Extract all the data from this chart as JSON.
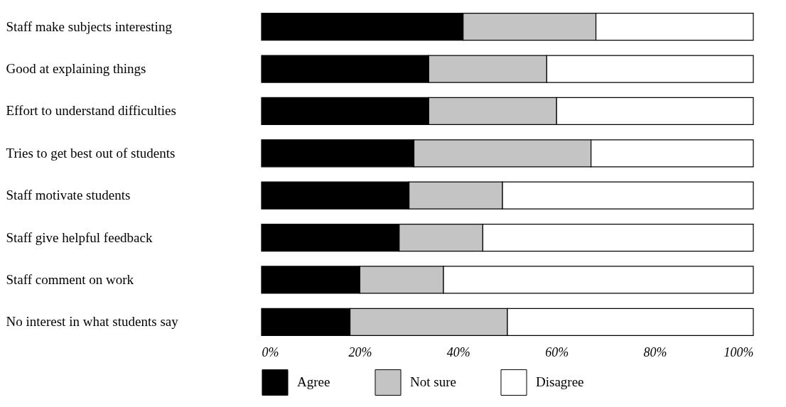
{
  "chart_data": {
    "type": "bar",
    "orientation": "horizontal",
    "stacked": true,
    "categories": [
      "Staff make subjects interesting",
      "Good at explaining things",
      "Effort to understand difficulties",
      "Tries to get best out of students",
      "Staff motivate students",
      "Staff give helpful feedback",
      "Staff comment on work",
      "No interest in what students say"
    ],
    "series": [
      {
        "name": "Agree",
        "color": "#000000",
        "values": [
          41,
          34,
          34,
          31,
          30,
          28,
          20,
          18
        ]
      },
      {
        "name": "Not sure",
        "color": "#c4c4c4",
        "values": [
          27,
          24,
          26,
          36,
          19,
          17,
          17,
          32
        ]
      },
      {
        "name": "Disagree",
        "color": "#ffffff",
        "values": [
          32,
          42,
          40,
          33,
          51,
          55,
          63,
          50
        ]
      }
    ],
    "xlim": [
      0,
      100
    ],
    "xticks": [
      {
        "value": 0,
        "label": "0%"
      },
      {
        "value": 20,
        "label": "20%"
      },
      {
        "value": 40,
        "label": "40%"
      },
      {
        "value": 60,
        "label": "60%"
      },
      {
        "value": 80,
        "label": "80%"
      },
      {
        "value": 100,
        "label": "100%"
      }
    ],
    "legend": "bottom"
  }
}
